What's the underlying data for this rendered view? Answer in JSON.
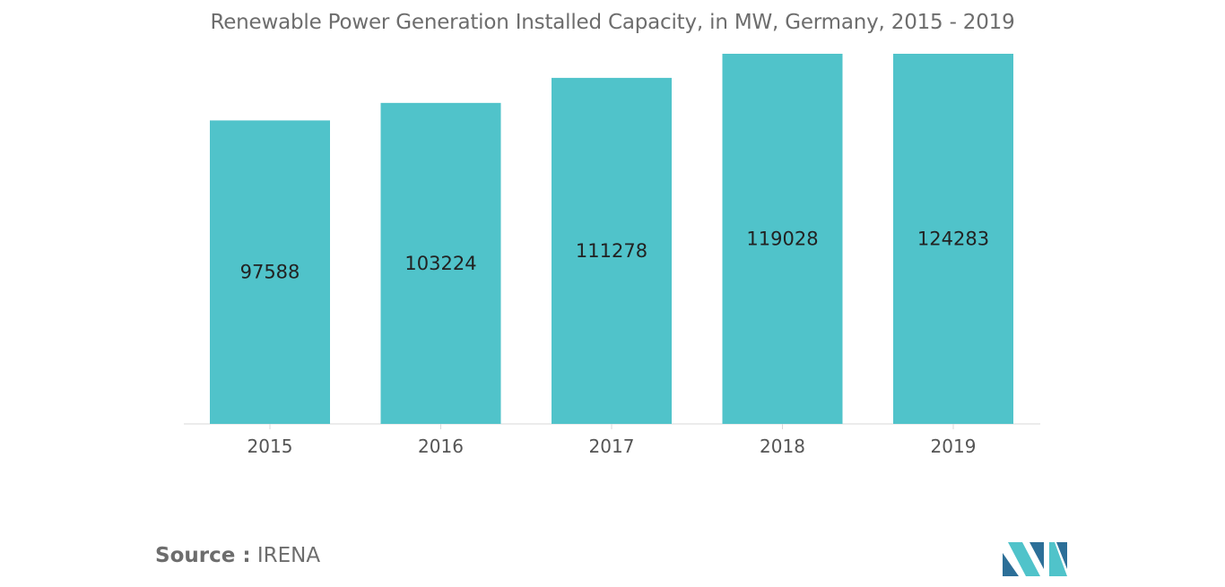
{
  "chart_data": {
    "type": "bar",
    "title": "Renewable Power Generation Installed Capacity, in MW, Germany, 2015 - 2019",
    "categories": [
      "2015",
      "2016",
      "2017",
      "2018",
      "2019"
    ],
    "values": [
      97588,
      103224,
      111278,
      119028,
      124283
    ],
    "xlabel": "",
    "ylabel": "",
    "ylim": [
      0,
      119028
    ],
    "grid": false,
    "legend": "none",
    "bar_color": "#50c3ca"
  },
  "source": {
    "prefix": "Source :",
    "name": "IRENA"
  },
  "logo": {
    "icon": "mordor-intelligence-logo-icon",
    "colors": [
      "#2c6f98",
      "#50c3ca"
    ]
  }
}
